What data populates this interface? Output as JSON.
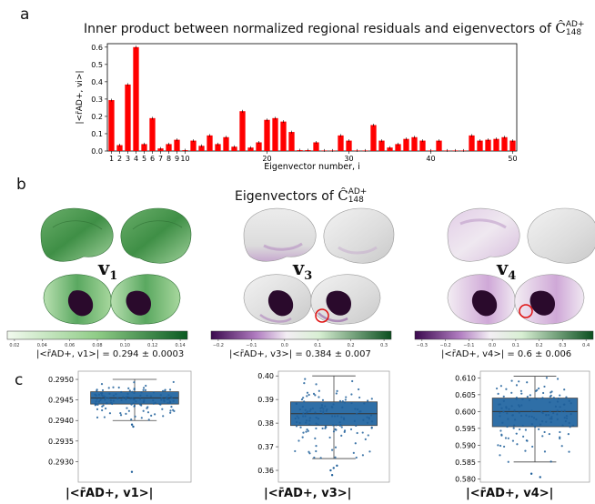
{
  "panel_a": {
    "letter": "a",
    "title_prefix": "Inner product between normalized regional residuals and eigenvectors of ",
    "title_matrix": "Ĉ",
    "title_sup": "AD+",
    "title_sub": "148"
  },
  "panel_b": {
    "letter": "b",
    "title_prefix": "Eigenvectors of ",
    "title_matrix": "Ĉ",
    "title_sup": "AD+",
    "title_sub": "148",
    "brains": [
      {
        "label_main": "v",
        "label_sub": "1",
        "colormap": "green",
        "caption": "|<r̄AD+, v1>| = 0.294 ± 0.0003",
        "ticks": [
          "0.02",
          "0.04",
          "0.06",
          "0.08",
          "0.10",
          "0.12",
          "0.14"
        ]
      },
      {
        "label_main": "v",
        "label_sub": "3",
        "colormap": "purple-green",
        "caption": "|<r̄AD+, v3>| = 0.384 ± 0.007",
        "ticks": [
          "−0.2",
          "−0.1",
          "0.0",
          "0.1",
          "0.2",
          "0.3"
        ]
      },
      {
        "label_main": "v",
        "label_sub": "4",
        "colormap": "purple-green",
        "caption": "|<r̄AD+, v4>| = 0.6 ± 0.006",
        "ticks": [
          "−0.3",
          "−0.2",
          "−0.1",
          "0.0",
          "0.1",
          "0.2",
          "0.3",
          "0.4"
        ]
      }
    ]
  },
  "panel_c": {
    "letter": "c",
    "xlabels": [
      "|<r̄AD+, v1>|",
      "|<r̄AD+, v3>|",
      "|<r̄AD+, v4>|"
    ]
  },
  "colors": {
    "bar": "#ff0000",
    "box": "#2f6fa7",
    "box_points": "#1f5f9a",
    "green_dark": "#1f6f2f",
    "purple_dark": "#4b0f5a"
  },
  "chart_data": [
    {
      "type": "bar",
      "title": "Inner product between normalized regional residuals and eigenvectors of Ĉ148AD+",
      "xlabel": "Eigenvector number, i",
      "ylabel": "|<r̄AD+, vi>|",
      "xlim": [
        0.5,
        50.5
      ],
      "ylim": [
        0,
        0.62
      ],
      "yticks": [
        "0.0",
        "0.1",
        "0.2",
        "0.3",
        "0.4",
        "0.5",
        "0.6"
      ],
      "xticks": [
        "1",
        "2",
        "3",
        "4",
        "5",
        "6",
        "7",
        "8",
        "9",
        "10",
        "20",
        "30",
        "40",
        "50"
      ],
      "categories": [
        1,
        2,
        3,
        4,
        5,
        6,
        7,
        8,
        9,
        10,
        11,
        12,
        13,
        14,
        15,
        16,
        17,
        18,
        19,
        20,
        21,
        22,
        23,
        24,
        25,
        26,
        27,
        28,
        29,
        30,
        31,
        32,
        33,
        34,
        35,
        36,
        37,
        38,
        39,
        40,
        41,
        42,
        43,
        44,
        45,
        46,
        47,
        48,
        49,
        50
      ],
      "values": [
        0.294,
        0.034,
        0.384,
        0.6,
        0.04,
        0.19,
        0.015,
        0.04,
        0.065,
        0.005,
        0.06,
        0.03,
        0.09,
        0.04,
        0.08,
        0.025,
        0.23,
        0.02,
        0.05,
        0.18,
        0.19,
        0.17,
        0.11,
        0.005,
        0.005,
        0.05,
        0.003,
        0.003,
        0.09,
        0.06,
        0.003,
        0.003,
        0.15,
        0.06,
        0.02,
        0.04,
        0.07,
        0.08,
        0.06,
        0.003,
        0.06,
        0.003,
        0.003,
        0.003,
        0.09,
        0.06,
        0.065,
        0.07,
        0.08,
        0.06
      ]
    },
    {
      "type": "box",
      "ylim": [
        0.2925,
        0.2952
      ],
      "yticks": [
        "0.2930",
        "0.2935",
        "0.2940",
        "0.2945",
        "0.2950"
      ],
      "whisker_low": 0.294,
      "q1": 0.2944,
      "median": 0.29455,
      "q3": 0.2947,
      "whisker_high": 0.295,
      "outliers": [
        0.29275,
        0.29385,
        0.2939
      ]
    },
    {
      "type": "box",
      "ylim": [
        0.355,
        0.402
      ],
      "yticks": [
        "0.36",
        "0.37",
        "0.38",
        "0.39",
        "0.40"
      ],
      "whisker_low": 0.365,
      "q1": 0.379,
      "median": 0.384,
      "q3": 0.389,
      "whisker_high": 0.4,
      "outliers": [
        0.358,
        0.36,
        0.361,
        0.362
      ]
    },
    {
      "type": "box",
      "ylim": [
        0.579,
        0.612
      ],
      "yticks": [
        "0.580",
        "0.585",
        "0.590",
        "0.595",
        "0.600",
        "0.605",
        "0.610"
      ],
      "whisker_low": 0.585,
      "q1": 0.5955,
      "median": 0.6,
      "q3": 0.604,
      "whisker_high": 0.6105,
      "outliers": [
        0.5805,
        0.5815
      ]
    }
  ]
}
